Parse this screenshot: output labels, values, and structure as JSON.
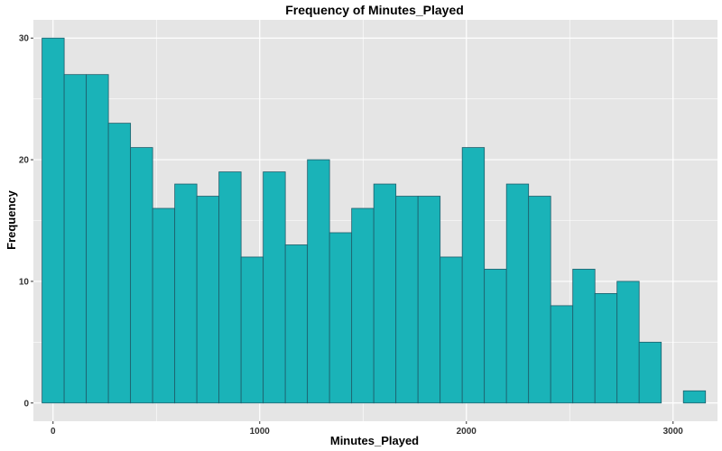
{
  "chart_data": {
    "type": "bar",
    "title": "Frequency of Minutes_Played",
    "xlabel": "Minutes_Played",
    "ylabel": "Frequency",
    "bin_width": 107,
    "bin_start": -53,
    "counts": [
      30,
      27,
      27,
      23,
      21,
      16,
      18,
      17,
      19,
      12,
      19,
      13,
      20,
      14,
      16,
      18,
      17,
      17,
      12,
      21,
      11,
      18,
      17,
      8,
      11,
      9,
      10,
      5,
      0,
      1
    ],
    "xlim": [
      -95,
      3215
    ],
    "ylim": [
      -1.5,
      31.5
    ],
    "x_ticks": [
      0,
      1000,
      2000,
      3000
    ],
    "x_tick_labels": [
      "0",
      "1000",
      "2000",
      "3000"
    ],
    "y_ticks": [
      0,
      10,
      20,
      30
    ],
    "y_tick_labels": [
      "0",
      "10",
      "20",
      "30"
    ],
    "grid": true,
    "bar_fill": "#1ab3b8",
    "bar_stroke": "#1e5e6b",
    "panel_background": "#e5e5e5",
    "grid_color": "#ffffff"
  }
}
